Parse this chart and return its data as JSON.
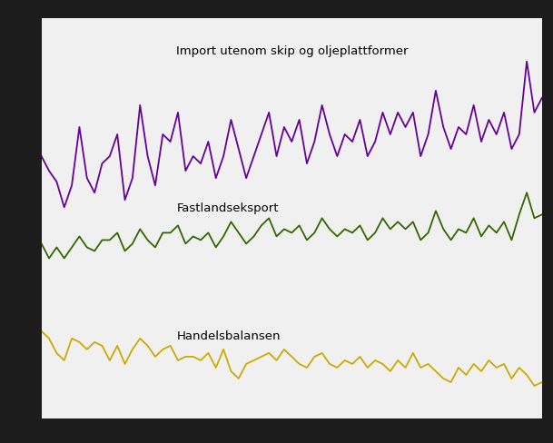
{
  "background_color": "#1c1c1c",
  "plot_bg_color": "#f0f0f0",
  "grid_color": "#d0d0d0",
  "label_import": "Import utenom skip og oljeplattformer",
  "label_export": "Fastlandseksport",
  "label_balance": "Handelsbalansen",
  "color_import": "#660099",
  "color_export": "#336600",
  "color_balance": "#ccaa00",
  "linewidth": 1.3,
  "import_data": [
    72,
    68,
    65,
    58,
    64,
    80,
    66,
    62,
    70,
    72,
    78,
    60,
    66,
    86,
    72,
    64,
    78,
    76,
    84,
    68,
    72,
    70,
    76,
    66,
    72,
    82,
    74,
    66,
    72,
    78,
    84,
    72,
    80,
    76,
    82,
    70,
    76,
    86,
    78,
    72,
    78,
    76,
    82,
    72,
    76,
    84,
    78,
    84,
    80,
    84,
    72,
    78,
    90,
    80,
    74,
    80,
    78,
    86,
    76,
    82,
    78,
    84,
    74,
    78,
    98,
    84,
    88
  ],
  "export_data": [
    48,
    44,
    47,
    44,
    47,
    50,
    47,
    46,
    49,
    49,
    51,
    46,
    48,
    52,
    49,
    47,
    51,
    51,
    53,
    48,
    50,
    49,
    51,
    47,
    50,
    54,
    51,
    48,
    50,
    53,
    55,
    50,
    52,
    51,
    53,
    49,
    51,
    55,
    52,
    50,
    52,
    51,
    53,
    49,
    51,
    55,
    52,
    54,
    52,
    54,
    49,
    51,
    57,
    52,
    49,
    52,
    51,
    55,
    50,
    53,
    51,
    54,
    49,
    56,
    62,
    55,
    56
  ],
  "balance_data": [
    24,
    22,
    18,
    16,
    22,
    21,
    19,
    21,
    20,
    16,
    20,
    15,
    19,
    22,
    20,
    17,
    19,
    20,
    16,
    17,
    17,
    16,
    18,
    14,
    19,
    13,
    11,
    15,
    16,
    17,
    18,
    16,
    19,
    17,
    15,
    14,
    17,
    18,
    15,
    14,
    16,
    15,
    17,
    14,
    16,
    15,
    13,
    16,
    14,
    18,
    14,
    15,
    13,
    11,
    10,
    14,
    12,
    15,
    13,
    16,
    14,
    15,
    11,
    14,
    12,
    9,
    10
  ],
  "n_points": 67,
  "ylim_min": 0,
  "ylim_max": 110
}
